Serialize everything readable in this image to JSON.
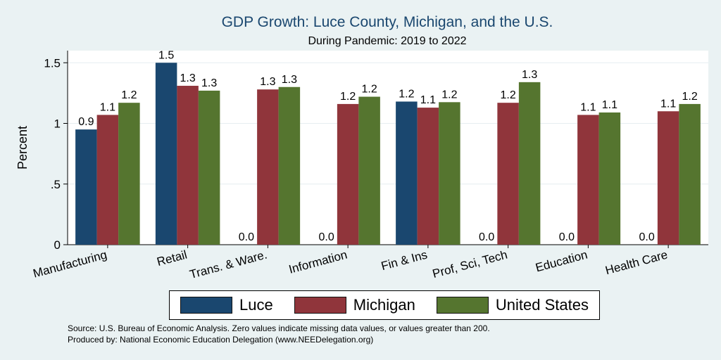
{
  "chart_data": {
    "type": "bar",
    "title": "GDP Growth: Luce County, Michigan, and the U.S.",
    "subtitle": "During Pandemic: 2019 to 2022",
    "xlabel": "",
    "ylabel": "Percent",
    "ylim": [
      0,
      1.6
    ],
    "yticks": [
      0,
      0.5,
      1,
      1.5
    ],
    "ytick_labels": [
      "0",
      ".5",
      "1",
      "1.5"
    ],
    "grid": true,
    "legend_position": "bottom",
    "categories": [
      "Manufacturing",
      "Retail",
      "Trans. & Ware.",
      "Information",
      "Fin & Ins",
      "Prof, Sci, Tech",
      "Education",
      "Health Care"
    ],
    "series": [
      {
        "name": "Luce",
        "color": "#1a476f",
        "values": [
          0.95,
          1.5,
          0,
          0,
          1.18,
          0,
          0,
          0
        ],
        "labels": [
          "0.9",
          "1.5",
          "0.0",
          "0.0",
          "1.2",
          "0.0",
          "0.0",
          "0.0"
        ]
      },
      {
        "name": "Michigan",
        "color": "#90353b",
        "values": [
          1.07,
          1.31,
          1.28,
          1.16,
          1.13,
          1.17,
          1.07,
          1.1
        ],
        "labels": [
          "1.1",
          "1.3",
          "1.3",
          "1.2",
          "1.1",
          "1.2",
          "1.1",
          "1.1"
        ]
      },
      {
        "name": "United States",
        "color": "#55752f",
        "values": [
          1.17,
          1.27,
          1.3,
          1.22,
          1.175,
          1.34,
          1.09,
          1.16
        ],
        "labels": [
          "1.2",
          "1.3",
          "1.3",
          "1.2",
          "1.2",
          "1.3",
          "1.1",
          "1.2"
        ]
      }
    ]
  },
  "footer": {
    "source": "Source: U.S. Bureau of Economic Analysis. Zero values indicate missing data values, or values greater than 200.",
    "produced_by": "Produced by: National Economic Education Delegation (www.NEEDelegation.org)"
  }
}
